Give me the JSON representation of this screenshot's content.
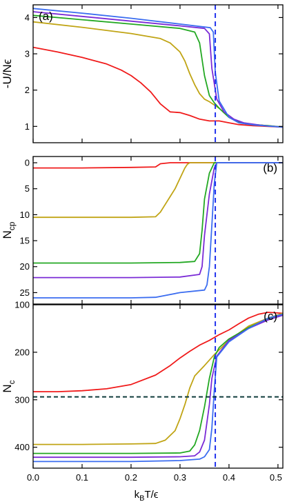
{
  "figure": {
    "xlabel": "k",
    "xlabel_sub": "B",
    "xlabel_rest": "T/ϵ",
    "xticks": [
      "0.0",
      "0.1",
      "0.2",
      "0.3",
      "0.4",
      "0.5"
    ]
  },
  "colors": {
    "red": "#f01a1a",
    "gold": "#c0a414",
    "green": "#22a822",
    "purple": "#7a2ad6",
    "blue": "#3a6cf0",
    "vline": "#2233ee",
    "hline": "#0d3a3a"
  },
  "chart_data": [
    {
      "type": "line",
      "panel_label": "(a)",
      "ylabel": "-U/Nϵ",
      "xlim": [
        0.0,
        0.51
      ],
      "ylim": [
        4.35,
        0.55
      ],
      "y_inverted": true,
      "yticks": [
        "1",
        "2",
        "3",
        "4"
      ],
      "vline_x": 0.372,
      "series": [
        {
          "color": "red",
          "x": [
            0.0,
            0.05,
            0.1,
            0.15,
            0.18,
            0.2,
            0.22,
            0.24,
            0.26,
            0.28,
            0.3,
            0.32,
            0.34,
            0.36,
            0.38,
            0.4,
            0.42,
            0.45,
            0.48,
            0.51
          ],
          "y": [
            3.18,
            3.05,
            2.9,
            2.72,
            2.55,
            2.4,
            2.2,
            1.95,
            1.62,
            1.4,
            1.38,
            1.3,
            1.2,
            1.15,
            1.15,
            1.1,
            1.05,
            1.02,
            1.0,
            0.98
          ]
        },
        {
          "color": "gold",
          "x": [
            0.0,
            0.1,
            0.2,
            0.26,
            0.28,
            0.3,
            0.31,
            0.32,
            0.33,
            0.34,
            0.35,
            0.36,
            0.38,
            0.4,
            0.42,
            0.45,
            0.48,
            0.51
          ],
          "y": [
            3.88,
            3.73,
            3.56,
            3.42,
            3.3,
            3.05,
            2.8,
            2.45,
            2.15,
            1.9,
            1.75,
            1.68,
            1.5,
            1.25,
            1.12,
            1.05,
            1.02,
            0.98
          ]
        },
        {
          "color": "green",
          "x": [
            0.0,
            0.1,
            0.2,
            0.3,
            0.33,
            0.34,
            0.35,
            0.36,
            0.37,
            0.38,
            0.4,
            0.42,
            0.45,
            0.48,
            0.51
          ],
          "y": [
            4.06,
            3.94,
            3.82,
            3.7,
            3.6,
            3.3,
            2.4,
            1.85,
            1.65,
            1.5,
            1.25,
            1.12,
            1.05,
            1.02,
            0.98
          ]
        },
        {
          "color": "purple",
          "x": [
            0.0,
            0.1,
            0.2,
            0.3,
            0.35,
            0.36,
            0.365,
            0.375,
            0.39,
            0.41,
            0.43,
            0.46,
            0.48,
            0.51
          ],
          "y": [
            4.16,
            4.03,
            3.9,
            3.77,
            3.7,
            3.55,
            2.6,
            1.75,
            1.4,
            1.2,
            1.1,
            1.04,
            1.01,
            0.98
          ]
        },
        {
          "color": "blue",
          "x": [
            0.0,
            0.1,
            0.2,
            0.3,
            0.362,
            0.368,
            0.372,
            0.38,
            0.4,
            0.42,
            0.45,
            0.48,
            0.51
          ],
          "y": [
            4.25,
            4.12,
            3.98,
            3.82,
            3.72,
            3.6,
            2.5,
            1.7,
            1.25,
            1.1,
            1.04,
            1.01,
            0.98
          ]
        }
      ]
    },
    {
      "type": "line",
      "panel_label": "(b)",
      "ylabel": "N",
      "ylabel_sub": "cp",
      "xlim": [
        0.0,
        0.51
      ],
      "ylim": [
        -1.2,
        27.2
      ],
      "yticks": [
        "0",
        "5",
        "10",
        "15",
        "20",
        "25"
      ],
      "vline_x": 0.372,
      "series": [
        {
          "color": "red",
          "x": [
            0.0,
            0.1,
            0.2,
            0.25,
            0.26,
            0.28,
            0.3,
            0.51
          ],
          "y": [
            1.0,
            1.0,
            0.9,
            0.8,
            0.2,
            0.0,
            0.0,
            0.0
          ]
        },
        {
          "color": "gold",
          "x": [
            0.0,
            0.1,
            0.2,
            0.25,
            0.26,
            0.27,
            0.28,
            0.29,
            0.3,
            0.31,
            0.315,
            0.32,
            0.51
          ],
          "y": [
            10.5,
            10.5,
            10.5,
            10.4,
            9.5,
            8.0,
            6.5,
            5.0,
            3.0,
            1.0,
            0.3,
            0.0,
            0.0
          ]
        },
        {
          "color": "green",
          "x": [
            0.0,
            0.1,
            0.2,
            0.3,
            0.33,
            0.34,
            0.345,
            0.35,
            0.36,
            0.37,
            0.51
          ],
          "y": [
            19.3,
            19.3,
            19.3,
            19.2,
            19.0,
            17.5,
            13.0,
            7.0,
            2.0,
            0.0,
            0.0
          ]
        },
        {
          "color": "purple",
          "x": [
            0.0,
            0.1,
            0.2,
            0.3,
            0.34,
            0.345,
            0.35,
            0.36,
            0.37,
            0.375,
            0.51
          ],
          "y": [
            22.1,
            22.1,
            22.1,
            22.0,
            21.5,
            20.0,
            14.0,
            6.0,
            1.0,
            0.0,
            0.0
          ]
        },
        {
          "color": "blue",
          "x": [
            0.0,
            0.1,
            0.2,
            0.25,
            0.3,
            0.35,
            0.355,
            0.36,
            0.365,
            0.37,
            0.375,
            0.51
          ],
          "y": [
            26.0,
            26.0,
            26.0,
            25.9,
            25.0,
            24.5,
            23.5,
            20.0,
            12.0,
            4.0,
            0.0,
            0.0
          ]
        }
      ]
    },
    {
      "type": "line",
      "panel_label": "(c)",
      "ylabel": "N",
      "ylabel_sub": "c",
      "xlim": [
        0.0,
        0.51
      ],
      "ylim": [
        100,
        444
      ],
      "yticks": [
        "100",
        "200",
        "300",
        "400"
      ],
      "vline_x": 0.372,
      "hline_y": 294,
      "series": [
        {
          "color": "red",
          "x": [
            0.0,
            0.05,
            0.1,
            0.15,
            0.2,
            0.25,
            0.28,
            0.3,
            0.32,
            0.34,
            0.36,
            0.38,
            0.4,
            0.42,
            0.44,
            0.46,
            0.48,
            0.51
          ],
          "y": [
            283,
            283,
            281,
            277,
            268,
            248,
            228,
            212,
            198,
            185,
            175,
            163,
            153,
            140,
            128,
            120,
            116,
            118
          ]
        },
        {
          "color": "gold",
          "x": [
            0.0,
            0.1,
            0.2,
            0.25,
            0.27,
            0.29,
            0.3,
            0.31,
            0.32,
            0.33,
            0.35,
            0.37,
            0.4,
            0.44,
            0.48,
            0.51
          ],
          "y": [
            394,
            394,
            393,
            392,
            385,
            365,
            340,
            310,
            275,
            250,
            228,
            205,
            175,
            145,
            128,
            118
          ]
        },
        {
          "color": "green",
          "x": [
            0.0,
            0.1,
            0.2,
            0.3,
            0.32,
            0.33,
            0.34,
            0.35,
            0.36,
            0.37,
            0.38,
            0.4,
            0.44,
            0.48,
            0.51
          ],
          "y": [
            413,
            413,
            413,
            412,
            408,
            395,
            365,
            315,
            255,
            210,
            190,
            172,
            148,
            130,
            120
          ]
        },
        {
          "color": "purple",
          "x": [
            0.0,
            0.1,
            0.2,
            0.3,
            0.33,
            0.34,
            0.35,
            0.36,
            0.365,
            0.375,
            0.4,
            0.44,
            0.48,
            0.51
          ],
          "y": [
            421,
            421,
            421,
            420,
            418,
            410,
            385,
            310,
            255,
            208,
            175,
            150,
            132,
            122
          ]
        },
        {
          "color": "blue",
          "x": [
            0.0,
            0.1,
            0.2,
            0.3,
            0.34,
            0.35,
            0.36,
            0.365,
            0.37,
            0.375,
            0.4,
            0.44,
            0.48,
            0.51
          ],
          "y": [
            430,
            430,
            430,
            428,
            425,
            420,
            405,
            360,
            280,
            210,
            178,
            150,
            128,
            120
          ]
        }
      ]
    }
  ]
}
